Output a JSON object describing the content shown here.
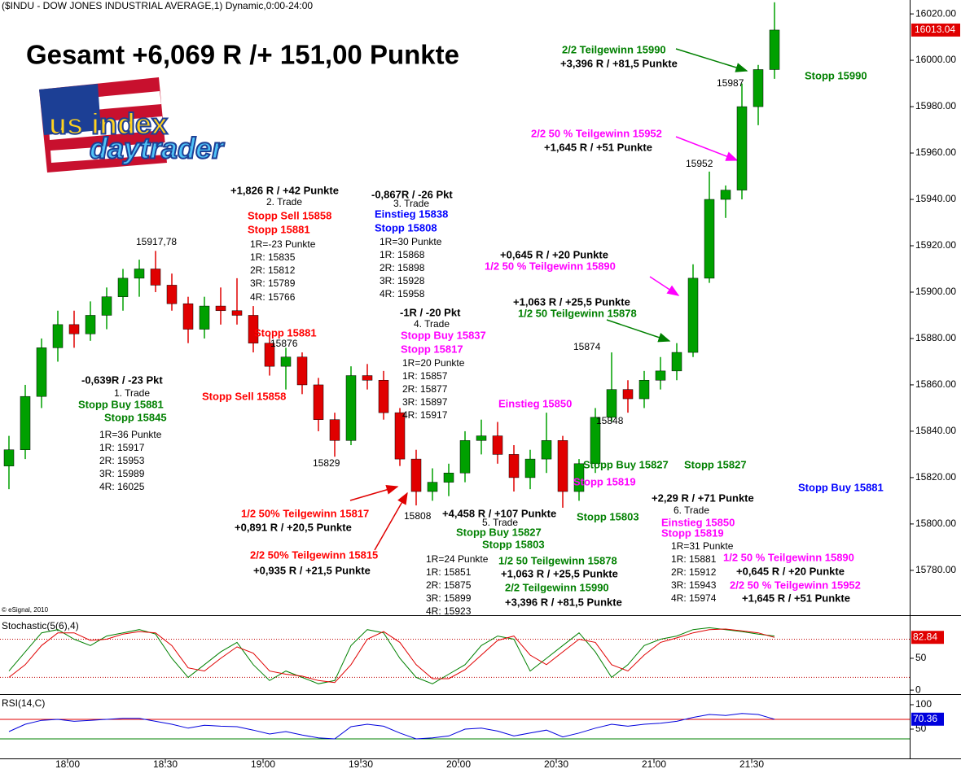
{
  "chart_data": {
    "type": "candlestick",
    "title": "($INDU - DOW JONES INDUSTRIAL AVERAGE,1) Dynamic,0:00-24:00",
    "headline": "Gesamt +6,069 R /+ 151,00 Punkte",
    "logo": [
      "us index",
      "daytrader"
    ],
    "copyright": "© eSignal, 2010",
    "x": [
      1062,
      1067,
      1072,
      1077,
      1082,
      1087,
      1092,
      1097,
      1102,
      1107,
      1112,
      1117,
      1122,
      1127,
      1132,
      1137,
      1142,
      1147,
      1152,
      1157,
      1162,
      1167,
      1172,
      1177,
      1182,
      1187,
      1192,
      1197,
      1202,
      1207,
      1212,
      1217,
      1222,
      1227,
      1232,
      1237,
      1242,
      1247,
      1252,
      1257,
      1262,
      1267,
      1272,
      1277,
      1282,
      1287,
      1292,
      1297
    ],
    "open": [
      15825,
      15832,
      15855,
      15876,
      15886,
      15882,
      15890,
      15898,
      15906,
      15910,
      15903,
      15895,
      15884,
      15894,
      15892,
      15890,
      15878,
      15868,
      15872,
      15860,
      15845,
      15836,
      15864,
      15862,
      15848,
      15828,
      15814,
      15818,
      15822,
      15836,
      15838,
      15830,
      15820,
      15828,
      15836,
      15814,
      15826,
      15846,
      15858,
      15854,
      15862,
      15866,
      15874,
      15906,
      15940,
      15944,
      15980,
      15996
    ],
    "high": [
      15838,
      15860,
      15880,
      15892,
      15892,
      15896,
      15902,
      15910,
      15914,
      15917.78,
      15908,
      15898,
      15898,
      15902,
      15906,
      15894,
      15882,
      15876,
      15874,
      15863,
      15848,
      15868,
      15869,
      15866,
      15850,
      15832,
      15824,
      15826,
      15840,
      15845,
      15844,
      15834,
      15832,
      15848,
      15838,
      15828,
      15850,
      15874,
      15862,
      15866,
      15872,
      15878,
      15912,
      15952,
      15946,
      15990,
      15998,
      16025
    ],
    "low": [
      15815,
      15828,
      15850,
      15870,
      15876,
      15879,
      15884,
      15892,
      15898,
      15900,
      15892,
      15878,
      15880,
      15886,
      15886,
      15874,
      15864,
      15858,
      15856,
      15840,
      15829,
      15834,
      15858,
      15845,
      15825,
      15808,
      15810,
      15812,
      15818,
      15830,
      15826,
      15814,
      15815,
      15822,
      15807,
      15810,
      15822,
      15844,
      15848,
      15850,
      15858,
      15862,
      15872,
      15904,
      15932,
      15940,
      15972,
      15992
    ],
    "close": [
      15832,
      15855,
      15876,
      15886,
      15882,
      15890,
      15898,
      15906,
      15910,
      15903,
      15895,
      15884,
      15894,
      15892,
      15890,
      15878,
      15868,
      15872,
      15860,
      15845,
      15836,
      15864,
      15862,
      15848,
      15828,
      15814,
      15818,
      15822,
      15836,
      15838,
      15830,
      15820,
      15828,
      15836,
      15814,
      15826,
      15846,
      15858,
      15854,
      15862,
      15866,
      15874,
      15906,
      15940,
      15944,
      15980,
      15996,
      16013.04
    ],
    "up_color": "#00a000",
    "down_color": "#e00000",
    "xlim": [
      1059.25,
      1338.5
    ],
    "xticks": [
      {
        "value": 1080,
        "label": "18:00"
      },
      {
        "value": 1110,
        "label": "18:30"
      },
      {
        "value": 1140,
        "label": "19:00"
      },
      {
        "value": 1170,
        "label": "19:30"
      },
      {
        "value": 1200,
        "label": "20:00"
      },
      {
        "value": 1230,
        "label": "20:30"
      },
      {
        "value": 1260,
        "label": "21:00"
      },
      {
        "value": 1290,
        "label": "21:30"
      }
    ],
    "ylim": [
      15761,
      16026
    ],
    "yticks": [
      {
        "value": 15780,
        "label": "15780.00"
      },
      {
        "value": 15800,
        "label": "15800.00"
      },
      {
        "value": 15820,
        "label": "15820.00"
      },
      {
        "value": 15840,
        "label": "15840.00"
      },
      {
        "value": 15860,
        "label": "15860.00"
      },
      {
        "value": 15880,
        "label": "15880.00"
      },
      {
        "value": 15900,
        "label": "15900.00"
      },
      {
        "value": 15920,
        "label": "15920.00"
      },
      {
        "value": 15940,
        "label": "15940.00"
      },
      {
        "value": 15960,
        "label": "15960.00"
      },
      {
        "value": 15980,
        "label": "15980.00"
      },
      {
        "value": 16000,
        "label": "16000.00"
      },
      {
        "value": 16020,
        "label": "16020.00"
      }
    ],
    "annotations": [
      "2/2 Teilgewinn 15990",
      "+3,396 R / +81,5 Punkte",
      "15987",
      "Stopp 15990",
      "2/2 50 % Teilgewinn 15952",
      "+1,645 R / +51 Punkte",
      "15952",
      "+1,826 R / +42 Punkte",
      "2. Trade",
      "Stopp Sell 15858",
      "Stopp 15881",
      "1R=-23 Punkte",
      "1R: 15835",
      "2R: 15812",
      "3R: 15789",
      "4R: 15766",
      "15917,78",
      "-0,867R / -26 Pkt",
      "3. Trade",
      "Einstieg 15838",
      "Stopp 15808",
      "1R=30 Punkte",
      "1R: 15868",
      "2R: 15898",
      "3R: 15928",
      "4R: 15958",
      "+0,645 R / +20 Punkte",
      "1/2 50 % Teilgewinn 15890",
      "+1,063 R / +25,5 Punkte",
      "1/2 50 Teilgewinn 15878",
      "-1R / -20 Pkt",
      "4. Trade",
      "Stopp Buy 15837",
      "Stopp 15817",
      "1R=20 Punkte",
      "1R: 15857",
      "2R: 15877",
      "3R: 15897",
      "4R: 15917",
      "Stopp 15881",
      "15876",
      "Stopp Sell 15858",
      "15829",
      "15874",
      "Einstieg 15850",
      "15848",
      "-0,639R / -23 Pkt",
      "1. Trade",
      "Stopp Buy 15881",
      "Stopp 15845",
      "1R=36 Punkte",
      "1R: 15917",
      "2R: 15953",
      "3R: 15989",
      "4R: 16025",
      "Stopp Buy 15827",
      "Stopp 15827",
      "Stopp 15819",
      "Stopp Buy 15881",
      "+2,29 R / +71 Punkte",
      "6. Trade",
      "Einstieg 15850",
      "Stopp 15819",
      "1R=31 Punkte",
      "1R: 15881",
      "2R: 15912",
      "3R: 15943",
      "4R: 15974",
      "1/2 50 % Teilgewinn 15890",
      "+0,645 R / +20 Punkte",
      "2/2 50 % Teilgewinn 15952",
      "+1,645 R / +51 Punkte",
      "15808",
      "+4,458 R / +107 Punkte",
      "Stopp 15803",
      "5. Trade",
      "Stopp Buy 15827",
      "Stopp 15803",
      "1R=24 Punkte",
      "1R: 15851",
      "2R: 15875",
      "3R: 15899",
      "4R: 15923",
      "1/2 50 Teilgewinn 15878",
      "+1,063 R / +25,5 Punkte",
      "2/2 Teilgewinn 15990",
      "+3,396 R / +81,5 Punkte",
      "1/2 50% Teilgewinn 15817",
      "+0,891 R / +20,5 Punkte",
      "2/2 50% Teilgewinn 15815",
      "+0,935 R / +21,5 Punkte"
    ],
    "stochastic": {
      "title": "Stochastic(5(6),4)",
      "ylim": [
        -5,
        110
      ],
      "yticks": [
        0,
        50
      ],
      "levels": [
        20,
        80
      ],
      "series": [
        {
          "color": "#008000",
          "values": [
            30,
            60,
            90,
            95,
            80,
            70,
            85,
            90,
            95,
            88,
            50,
            20,
            40,
            60,
            75,
            40,
            15,
            30,
            20,
            10,
            15,
            70,
            95,
            90,
            50,
            20,
            10,
            25,
            40,
            70,
            85,
            80,
            30,
            50,
            70,
            90,
            60,
            20,
            40,
            70,
            80,
            85,
            95,
            98,
            95,
            92,
            88,
            85
          ]
        },
        {
          "color": "#e00000",
          "values": [
            20,
            40,
            70,
            90,
            90,
            78,
            80,
            88,
            92,
            90,
            70,
            35,
            30,
            50,
            68,
            58,
            30,
            25,
            22,
            15,
            12,
            40,
            80,
            92,
            75,
            40,
            18,
            18,
            32,
            55,
            78,
            85,
            55,
            40,
            60,
            80,
            75,
            40,
            30,
            55,
            75,
            82,
            90,
            95,
            96,
            93,
            90,
            82.84
          ]
        }
      ]
    },
    "rsi": {
      "title": "RSI(14,C)",
      "ylim": [
        0,
        110
      ],
      "yticks": [
        50,
        100
      ],
      "levels": [
        {
          "value": 30,
          "color": "#008000"
        },
        {
          "value": 70,
          "color": "#e00000"
        }
      ],
      "series": [
        {
          "color": "#0000dd",
          "values": [
            45,
            60,
            68,
            70,
            66,
            68,
            70,
            72,
            72,
            66,
            60,
            52,
            58,
            56,
            55,
            48,
            40,
            45,
            38,
            32,
            30,
            55,
            60,
            56,
            42,
            30,
            32,
            36,
            50,
            52,
            46,
            36,
            42,
            48,
            34,
            42,
            52,
            60,
            56,
            60,
            62,
            66,
            74,
            80,
            78,
            82,
            80,
            70.36
          ]
        }
      ]
    }
  }
}
